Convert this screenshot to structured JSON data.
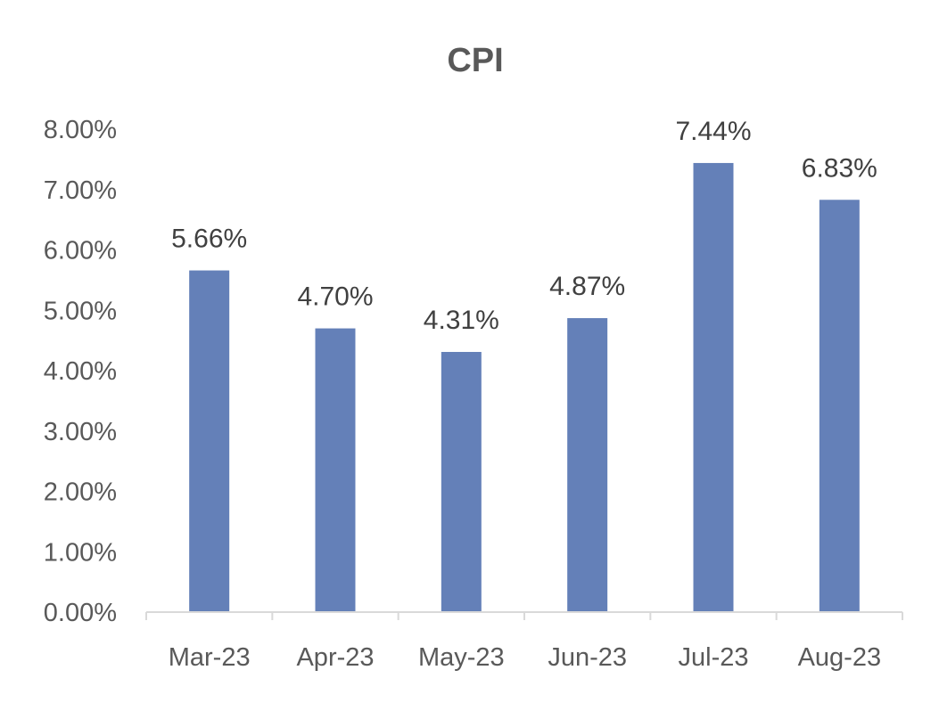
{
  "chart_data": {
    "type": "bar",
    "title": "CPI",
    "categories": [
      "Mar-23",
      "Apr-23",
      "May-23",
      "Jun-23",
      "Jul-23",
      "Aug-23"
    ],
    "values": [
      5.66,
      4.7,
      4.31,
      4.87,
      7.44,
      6.83
    ],
    "data_labels": [
      "5.66%",
      "4.70%",
      "4.31%",
      "4.87%",
      "7.44%",
      "6.83%"
    ],
    "y_ticks": [
      "0.00%",
      "1.00%",
      "2.00%",
      "3.00%",
      "4.00%",
      "5.00%",
      "6.00%",
      "7.00%",
      "8.00%"
    ],
    "ylim": [
      0,
      8
    ],
    "unit": "%",
    "grid": false,
    "legend": "none",
    "bar_color": "#6480b8"
  }
}
